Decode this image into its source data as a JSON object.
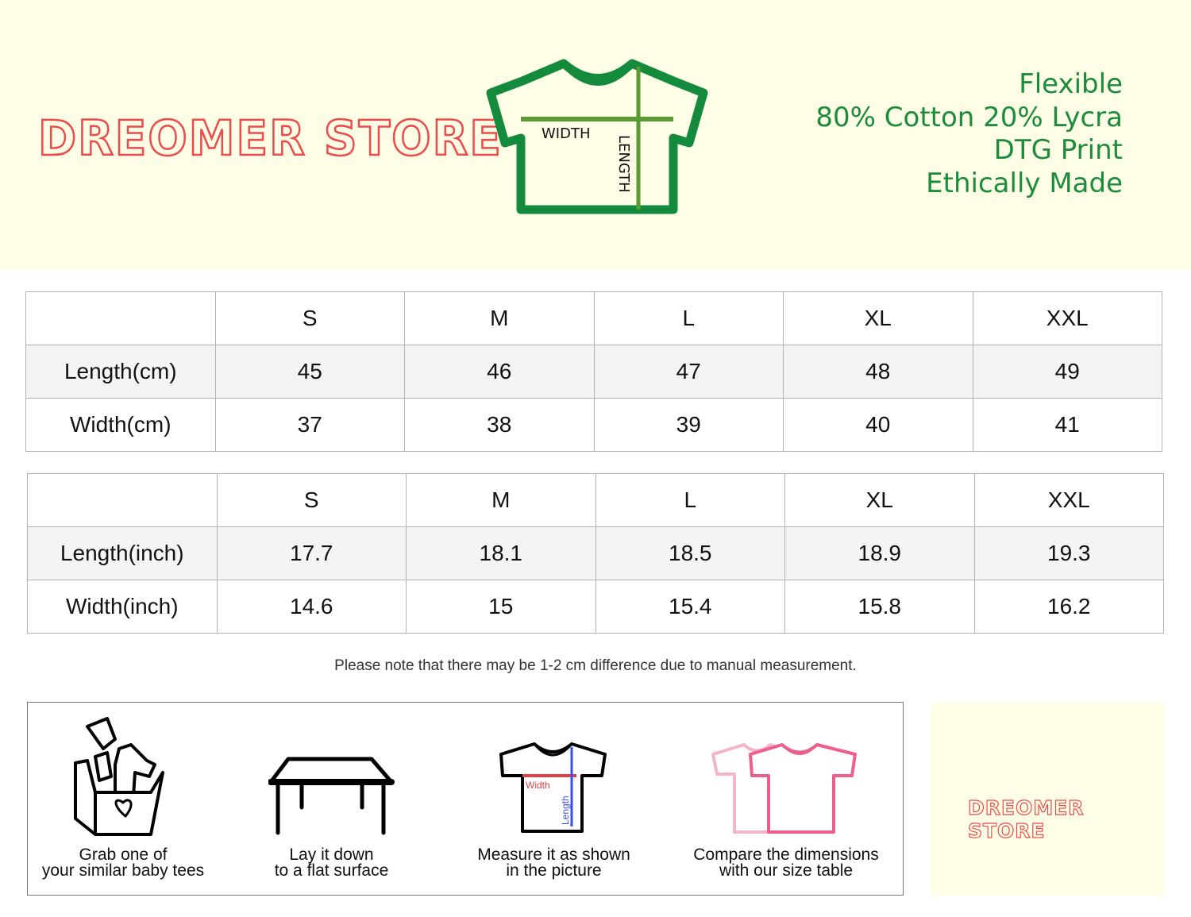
{
  "brand": {
    "name": "DREOMER STORE",
    "color": "#ec4c4c"
  },
  "diagram": {
    "width_label": "WIDTH",
    "length_label": "LENGTH",
    "color": "#1b8c3c"
  },
  "features": [
    "Flexible",
    "80% Cotton 20% Lycra",
    "DTG Print",
    "Ethically Made"
  ],
  "cm_table": {
    "headers": [
      "",
      "S",
      "M",
      "L",
      "XL",
      "XXL"
    ],
    "rows": [
      {
        "label": "Length(cm)",
        "values": [
          "45",
          "46",
          "47",
          "48",
          "49"
        ]
      },
      {
        "label": "Width(cm)",
        "values": [
          "37",
          "38",
          "39",
          "40",
          "41"
        ]
      }
    ]
  },
  "inch_table": {
    "headers": [
      "",
      "S",
      "M",
      "L",
      "XL",
      "XXL"
    ],
    "rows": [
      {
        "label": "Length(inch)",
        "values": [
          "17.7",
          "18.1",
          "18.5",
          "18.9",
          "19.3"
        ]
      },
      {
        "label": "Width(inch)",
        "values": [
          "14.6",
          "15",
          "15.4",
          "15.8",
          "16.2"
        ]
      }
    ]
  },
  "note": "Please note that there may be 1-2 cm difference due to manual measurement.",
  "steps": [
    {
      "icon": "box-of-clothes-icon",
      "lines": [
        "Grab one of",
        "your similar baby tees"
      ]
    },
    {
      "icon": "table-icon",
      "lines": [
        "Lay it down",
        "to a flat surface"
      ]
    },
    {
      "icon": "measured-shirt-icon",
      "lines": [
        "Measure it as shown",
        "in the picture"
      ],
      "width_label": "Width",
      "length_label": "Length"
    },
    {
      "icon": "compare-shirts-icon",
      "lines": [
        "Compare the dimensions",
        "with our size table"
      ]
    }
  ]
}
